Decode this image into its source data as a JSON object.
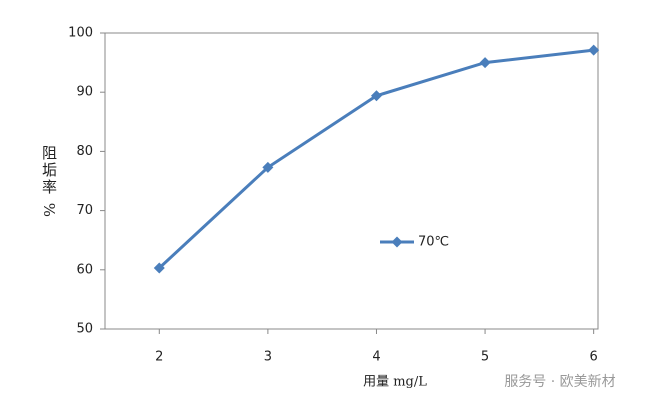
{
  "chart_data": {
    "type": "line",
    "x_label": "用量 mg/L",
    "y_label": "阻垢率 %",
    "x": [
      2,
      3,
      4,
      5,
      6
    ],
    "series": [
      {
        "name": "70℃",
        "color": "#4a7ebb",
        "values": [
          60.3,
          77.3,
          89.4,
          95.0,
          97.1
        ]
      }
    ],
    "xlim": [
      1.5,
      6.04
    ],
    "xticks": [
      2,
      3,
      4,
      5,
      6
    ],
    "ylim": [
      50,
      100
    ],
    "yticks": [
      50,
      60,
      70,
      80,
      90,
      100
    ],
    "legend": "center",
    "watermark": "服务号 · 欧美新材"
  }
}
